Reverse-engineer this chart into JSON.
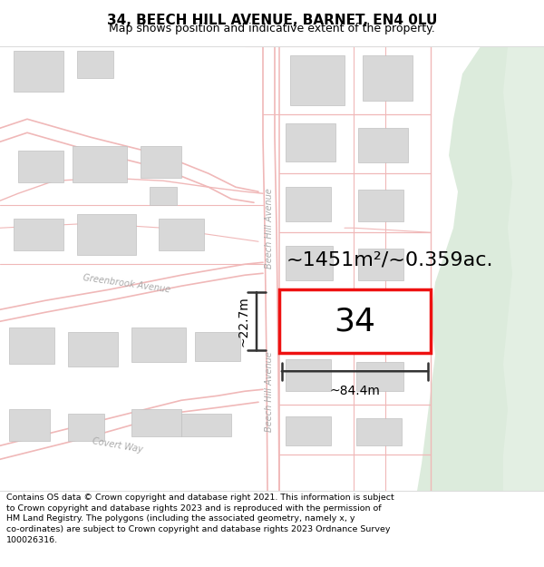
{
  "title": "34, BEECH HILL AVENUE, BARNET, EN4 0LU",
  "subtitle": "Map shows position and indicative extent of the property.",
  "area_text": "~1451m²/~0.359ac.",
  "width_label": "~84.4m",
  "height_label": "~22.7m",
  "property_number": "34",
  "footer_text": "Contains OS data © Crown copyright and database right 2021. This information is subject to Crown copyright and database rights 2023 and is reproduced with the permission of HM Land Registry. The polygons (including the associated geometry, namely x, y co-ordinates) are subject to Crown copyright and database rights 2023 Ordnance Survey 100026316.",
  "bg_color": "#f7f5f2",
  "road_color": "#f0b8b8",
  "road_lw": 1.0,
  "green_color": "#d6e8d6",
  "green2_color": "#c8dfc8",
  "bldg_color": "#d8d8d8",
  "bldg_edge": "#c0c0c0",
  "prop_red": "#ee1111",
  "dim_color": "#333333",
  "label_color": "#aaaaaa",
  "title_fontsize": 11,
  "subtitle_fontsize": 9,
  "area_fontsize": 16,
  "number_fontsize": 26,
  "dim_fontsize": 10,
  "road_label_fontsize": 7
}
